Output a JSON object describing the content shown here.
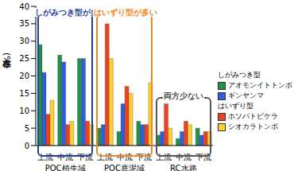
{
  "chart_data": {
    "type": "bar",
    "y_label": "存在率(%)",
    "categories": [
      "上流",
      "中流",
      "下流",
      "上流",
      "中流",
      "下流",
      "上流",
      "中流",
      "下流"
    ],
    "x_groups": [
      "POC植生域",
      "POC底泥域",
      "RC水路"
    ],
    "ylim": [
      0,
      40
    ],
    "yticks": [
      0,
      5,
      10,
      15,
      20,
      25,
      30,
      35,
      40
    ],
    "grid": false,
    "legend": "right",
    "series": [
      {
        "name": "アオモンイトトンボ",
        "group": "しがみつき型",
        "color": "#22914a",
        "values": [
          29,
          26,
          25,
          5,
          4,
          7,
          3,
          2,
          5
        ]
      },
      {
        "name": "ギンヤンマ",
        "group": "しがみつき型",
        "color": "#2f5fe0",
        "values": [
          21,
          24,
          25,
          6,
          12,
          6,
          4,
          4,
          3
        ]
      },
      {
        "name": "ホソバトビケラ",
        "group": "はいずり型",
        "color": "#f04020",
        "values": [
          9,
          6,
          7,
          35,
          17,
          6,
          12,
          7,
          4
        ]
      },
      {
        "name": "シオカラトンボ",
        "group": "はいずり型",
        "color": "#ffd030",
        "values": [
          13,
          7,
          6,
          25,
          15,
          18,
          5,
          6,
          4
        ]
      }
    ],
    "annotations": [
      {
        "text": "しがみつき型が多い",
        "group": "POC植生域",
        "color": "#1f3f99"
      },
      {
        "text": "はいずり型が多い",
        "group": "POC底泥域",
        "color": "#f08a20"
      },
      {
        "text": "両方少ない",
        "group": "RC水路",
        "color": "#555555"
      }
    ]
  }
}
